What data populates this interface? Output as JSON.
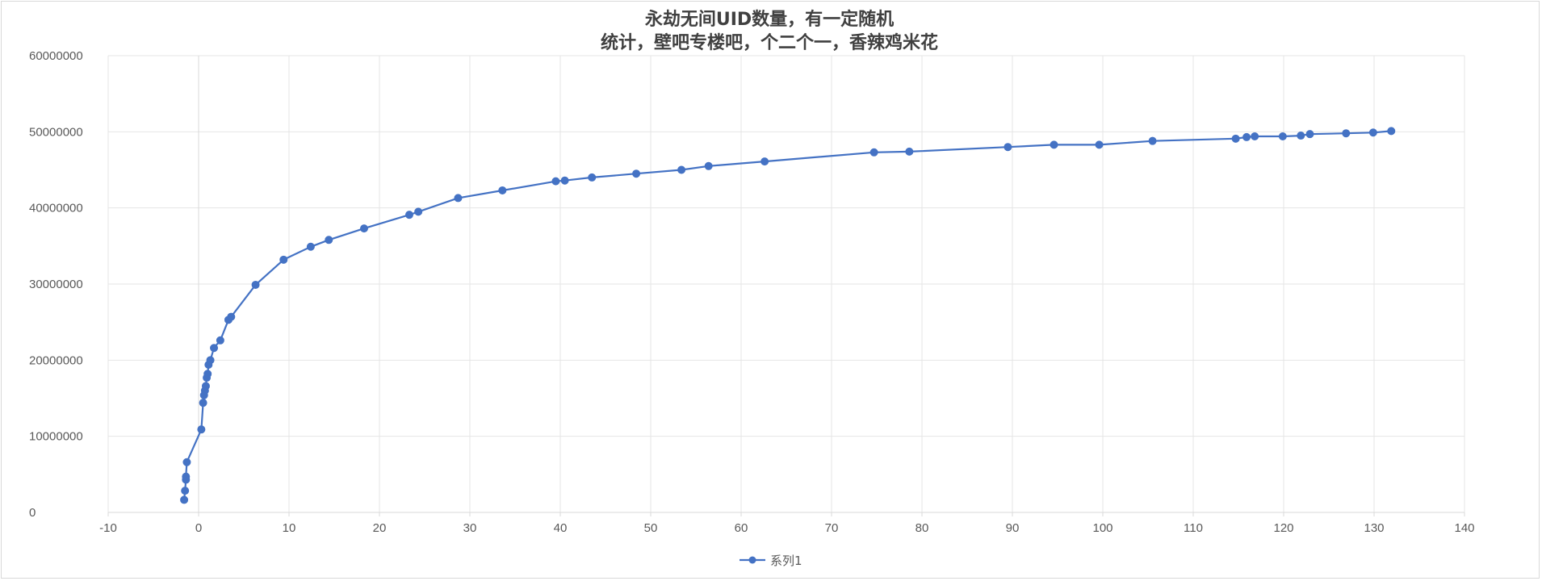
{
  "chart_data": {
    "type": "scatter",
    "title_lines": [
      "永劫无间UID数量，有一定随机",
      "统计，壁吧专楼吧，个二个一，香辣鸡米花"
    ],
    "xlabel": "",
    "ylabel": "",
    "xlim": [
      -10,
      140
    ],
    "ylim": [
      0,
      60000000
    ],
    "x_ticks": [
      -10,
      0,
      10,
      20,
      30,
      40,
      50,
      60,
      70,
      80,
      90,
      100,
      110,
      120,
      130,
      140
    ],
    "y_ticks": [
      0,
      10000000,
      20000000,
      30000000,
      40000000,
      50000000,
      60000000
    ],
    "grid": true,
    "legend_position": "bottom",
    "line_style": "straight lines with markers",
    "series": [
      {
        "name": "系列1",
        "color": "#4472C4",
        "points": [
          [
            -1.6,
            1650000
          ],
          [
            -1.5,
            2850000
          ],
          [
            -1.4,
            4300000
          ],
          [
            -1.4,
            4700000
          ],
          [
            -1.3,
            6600000
          ],
          [
            0.3,
            10900000
          ],
          [
            0.5,
            14400000
          ],
          [
            0.6,
            15400000
          ],
          [
            0.7,
            16000000
          ],
          [
            0.8,
            16600000
          ],
          [
            0.9,
            17700000
          ],
          [
            1.0,
            18200000
          ],
          [
            1.1,
            19400000
          ],
          [
            1.3,
            20000000
          ],
          [
            1.7,
            21600000
          ],
          [
            2.4,
            22600000
          ],
          [
            3.3,
            25300000
          ],
          [
            3.6,
            25700000
          ],
          [
            6.3,
            29900000
          ],
          [
            9.4,
            33200000
          ],
          [
            12.4,
            34900000
          ],
          [
            14.4,
            35800000
          ],
          [
            18.3,
            37300000
          ],
          [
            23.3,
            39100000
          ],
          [
            24.3,
            39500000
          ],
          [
            28.7,
            41300000
          ],
          [
            33.6,
            42300000
          ],
          [
            39.5,
            43500000
          ],
          [
            40.5,
            43600000
          ],
          [
            43.5,
            44000000
          ],
          [
            48.4,
            44500000
          ],
          [
            53.4,
            45000000
          ],
          [
            56.4,
            45500000
          ],
          [
            62.6,
            46100000
          ],
          [
            74.7,
            47300000
          ],
          [
            78.6,
            47400000
          ],
          [
            89.5,
            48000000
          ],
          [
            94.6,
            48300000
          ],
          [
            99.6,
            48300000
          ],
          [
            105.5,
            48800000
          ],
          [
            114.7,
            49100000
          ],
          [
            115.9,
            49300000
          ],
          [
            116.8,
            49400000
          ],
          [
            119.9,
            49400000
          ],
          [
            121.9,
            49500000
          ],
          [
            122.9,
            49700000
          ],
          [
            126.9,
            49800000
          ],
          [
            129.9,
            49900000
          ],
          [
            131.9,
            50100000
          ]
        ]
      }
    ]
  },
  "colors": {
    "series": "#4472C4",
    "grid": "#e5e5e5",
    "axis": "#d9d9d9",
    "text": "#595959",
    "title": "#404040"
  }
}
